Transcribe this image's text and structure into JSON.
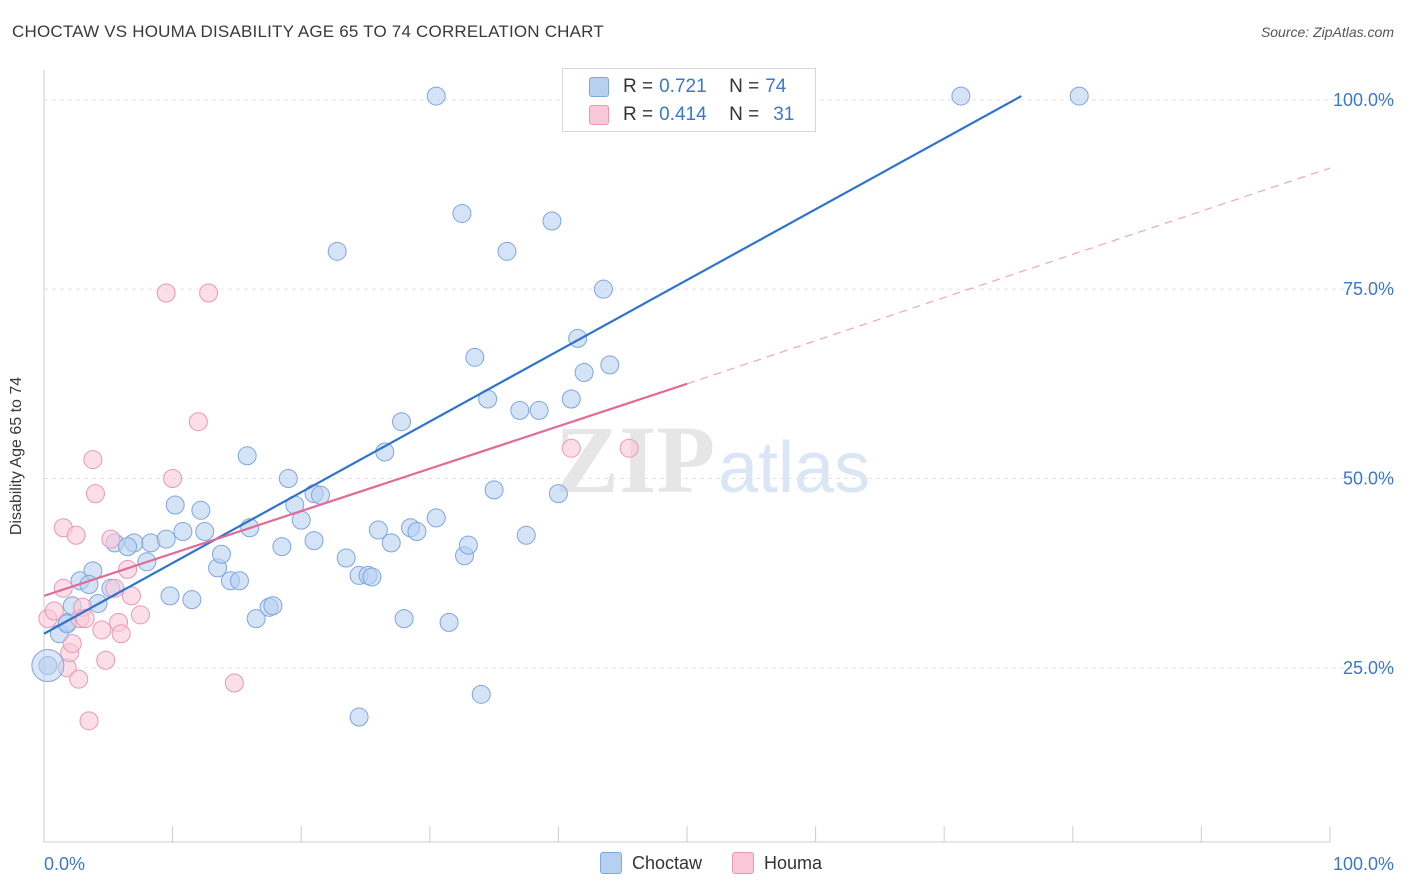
{
  "header": {
    "title": "CHOCTAW VS HOUMA DISABILITY AGE 65 TO 74 CORRELATION CHART",
    "source": "Source: ZipAtlas.com"
  },
  "legend": {
    "r_label": "R =",
    "n_label": "N =",
    "rows": [
      {
        "r": "0.721",
        "n": "74",
        "color": "#b8d0f0",
        "border": "#7ea6e0"
      },
      {
        "r": "0.414",
        "n": "31",
        "color": "#f8c8d8",
        "border": "#e898b4"
      }
    ]
  },
  "watermark": {
    "zip": "ZIP",
    "atlas": "atlas"
  },
  "colors": {
    "choctaw_fill": "#b8d0f0",
    "choctaw_stroke": "#7ea6e0",
    "choctaw_line": "#2f73cc",
    "houma_fill": "#f8c8d8",
    "houma_stroke": "#e898b4",
    "houma_line": "#e06a98",
    "axis_label": "#3b78c8",
    "grid": "#e2e2e2"
  },
  "chart_data": {
    "type": "scatter",
    "title": "CHOCTAW VS HOUMA DISABILITY AGE 65 TO 74 CORRELATION CHART",
    "xlabel": "",
    "ylabel": "Disability Age 65 to 74",
    "xlim": [
      0,
      100
    ],
    "ylim": [
      2,
      105
    ],
    "x_tick_labels": [
      "0.0%",
      "100.0%"
    ],
    "y_ticks": [
      25,
      50,
      75,
      100
    ],
    "y_tick_labels": [
      "25.0%",
      "50.0%",
      "75.0%",
      "100.0%"
    ],
    "grid": true,
    "legend_position": "top-center",
    "series": [
      {
        "name": "Choctaw",
        "points": [
          [
            0.3,
            25.3
          ],
          [
            1.2,
            29.5
          ],
          [
            1.8,
            31.0
          ],
          [
            2.2,
            33.2
          ],
          [
            2.8,
            36.5
          ],
          [
            3.8,
            37.8
          ],
          [
            4.2,
            33.5
          ],
          [
            5.2,
            35.5
          ],
          [
            5.5,
            41.5
          ],
          [
            7.0,
            41.5
          ],
          [
            8.0,
            39.0
          ],
          [
            8.3,
            41.5
          ],
          [
            9.5,
            42.0
          ],
          [
            9.8,
            34.5
          ],
          [
            10.2,
            46.5
          ],
          [
            10.8,
            43.0
          ],
          [
            11.5,
            34.0
          ],
          [
            12.2,
            45.8
          ],
          [
            12.5,
            43.0
          ],
          [
            13.5,
            38.2
          ],
          [
            13.8,
            40.0
          ],
          [
            14.5,
            36.5
          ],
          [
            15.2,
            36.5
          ],
          [
            15.8,
            53.0
          ],
          [
            16.0,
            43.5
          ],
          [
            16.5,
            31.5
          ],
          [
            17.5,
            33.0
          ],
          [
            17.8,
            33.2
          ],
          [
            18.5,
            41.0
          ],
          [
            19.0,
            50.0
          ],
          [
            19.5,
            46.5
          ],
          [
            20.0,
            44.5
          ],
          [
            21.0,
            48.0
          ],
          [
            21.5,
            47.8
          ],
          [
            21.0,
            41.8
          ],
          [
            22.8,
            80.0
          ],
          [
            23.5,
            39.5
          ],
          [
            24.5,
            37.2
          ],
          [
            25.2,
            37.2
          ],
          [
            25.5,
            37.0
          ],
          [
            26.0,
            43.2
          ],
          [
            26.5,
            53.5
          ],
          [
            27.0,
            41.5
          ],
          [
            27.8,
            57.5
          ],
          [
            28.0,
            31.5
          ],
          [
            28.5,
            43.5
          ],
          [
            29.0,
            43.0
          ],
          [
            30.5,
            44.8
          ],
          [
            31.5,
            31.0
          ],
          [
            32.5,
            85.0
          ],
          [
            32.7,
            39.8
          ],
          [
            33.0,
            41.2
          ],
          [
            33.5,
            66.0
          ],
          [
            34.0,
            21.5
          ],
          [
            34.5,
            60.5
          ],
          [
            35.0,
            48.5
          ],
          [
            36.0,
            80.0
          ],
          [
            37.0,
            59.0
          ],
          [
            37.5,
            42.5
          ],
          [
            39.5,
            84.0
          ],
          [
            38.5,
            59.0
          ],
          [
            40.0,
            48.0
          ],
          [
            41.0,
            60.5
          ],
          [
            41.5,
            68.5
          ],
          [
            42.0,
            64.0
          ],
          [
            43.5,
            75.0
          ],
          [
            44.0,
            65.0
          ],
          [
            30.5,
            100.5
          ],
          [
            71.3,
            100.5
          ],
          [
            80.5,
            100.5
          ],
          [
            24.5,
            18.5
          ],
          [
            3.5,
            36.0
          ],
          [
            6.5,
            41.0
          ],
          [
            1.8,
            30.8
          ]
        ]
      },
      {
        "name": "Houma",
        "points": [
          [
            0.3,
            31.5
          ],
          [
            0.8,
            32.5
          ],
          [
            1.5,
            35.5
          ],
          [
            1.5,
            43.5
          ],
          [
            1.8,
            25.0
          ],
          [
            2.0,
            27.0
          ],
          [
            2.2,
            28.2
          ],
          [
            2.5,
            42.5
          ],
          [
            2.7,
            23.5
          ],
          [
            2.8,
            31.5
          ],
          [
            3.0,
            33.0
          ],
          [
            3.2,
            31.5
          ],
          [
            3.5,
            18.0
          ],
          [
            3.8,
            52.5
          ],
          [
            4.0,
            48.0
          ],
          [
            4.5,
            30.0
          ],
          [
            4.8,
            26.0
          ],
          [
            5.2,
            42.0
          ],
          [
            5.5,
            35.5
          ],
          [
            5.8,
            31.0
          ],
          [
            6.0,
            29.5
          ],
          [
            6.5,
            38.0
          ],
          [
            6.8,
            34.5
          ],
          [
            7.5,
            32.0
          ],
          [
            9.5,
            74.5
          ],
          [
            10.0,
            50.0
          ],
          [
            12.0,
            57.5
          ],
          [
            12.8,
            74.5
          ],
          [
            14.8,
            23.0
          ],
          [
            41.0,
            54.0
          ],
          [
            45.5,
            54.0
          ]
        ]
      }
    ],
    "trendlines": [
      {
        "series": "Choctaw",
        "x0": 0,
        "y0": 29.5,
        "x1": 76,
        "y1": 100.5
      },
      {
        "series": "Houma",
        "x0": 0,
        "y0": 34.5,
        "x1": 50,
        "y1": 62.5,
        "dash_to_x": 100,
        "dash_to_y": 91
      }
    ]
  }
}
